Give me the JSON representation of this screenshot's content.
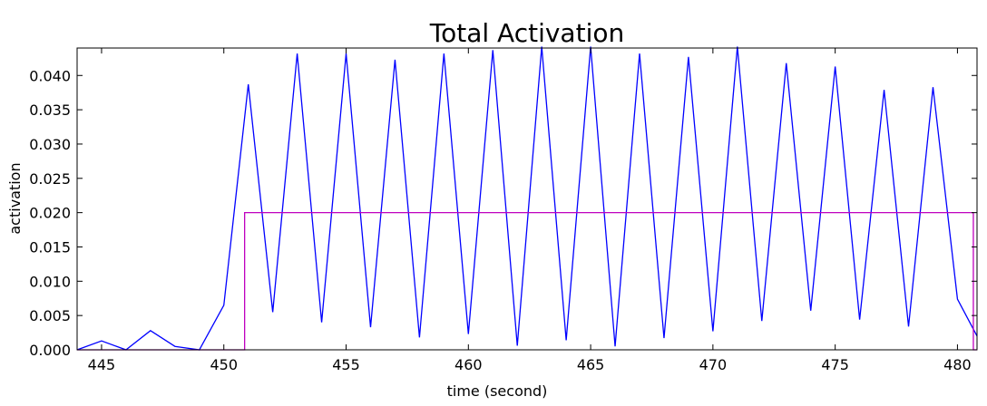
{
  "chart_data": {
    "type": "line",
    "title": "Total Activation",
    "xlabel": "time (second)",
    "ylabel": "activation",
    "xlim": [
      444,
      480.8
    ],
    "ylim": [
      0,
      0.044
    ],
    "xticks": [
      445,
      450,
      455,
      460,
      465,
      470,
      475,
      480
    ],
    "xtick_labels": [
      "445",
      "450",
      "455",
      "460",
      "465",
      "470",
      "475",
      "480"
    ],
    "yticks": [
      0.0,
      0.005,
      0.01,
      0.015,
      0.02,
      0.025,
      0.03,
      0.035,
      0.04
    ],
    "ytick_labels": [
      "0.000",
      "0.005",
      "0.010",
      "0.015",
      "0.020",
      "0.025",
      "0.030",
      "0.035",
      "0.040"
    ],
    "grid": false,
    "series": [
      {
        "color": "#0000ff",
        "x": [
          444,
          445,
          446,
          447,
          448,
          449,
          450,
          451,
          452,
          453,
          454,
          455,
          456,
          457,
          458,
          459,
          460,
          461,
          462,
          463,
          464,
          465,
          466,
          467,
          468,
          469,
          470,
          471,
          472,
          473,
          474,
          475,
          476,
          477,
          478,
          479,
          480,
          480.8
        ],
        "y": [
          0.0,
          0.0013,
          0.0,
          0.0028,
          0.0005,
          0.0,
          0.0065,
          0.0387,
          0.0055,
          0.0432,
          0.004,
          0.0432,
          0.0033,
          0.0423,
          0.0018,
          0.0432,
          0.0023,
          0.0437,
          0.0006,
          0.0442,
          0.0014,
          0.0442,
          0.0005,
          0.0432,
          0.0017,
          0.0427,
          0.0027,
          0.0442,
          0.0042,
          0.0418,
          0.0057,
          0.0413,
          0.0044,
          0.0379,
          0.0034,
          0.0383,
          0.0074,
          0.002
        ]
      },
      {
        "color": "#bf00bf",
        "x": [
          444,
          450.85,
          450.85,
          480.65,
          480.65,
          480.8
        ],
        "y": [
          0.0,
          0.0,
          0.02,
          0.02,
          0.0,
          0.0
        ]
      }
    ]
  }
}
